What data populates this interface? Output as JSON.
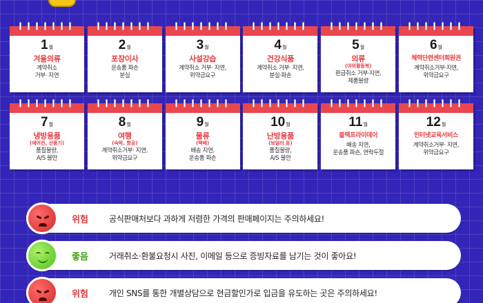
{
  "month_unit": "월",
  "months": [
    {
      "num": "1",
      "category": "겨울의류",
      "sub": "",
      "desc": "계약취소\n거부· 지연"
    },
    {
      "num": "2",
      "category": "포장이사",
      "sub": "",
      "desc": "운송품 파손\n분실"
    },
    {
      "num": "3",
      "category": "사설강습",
      "sub": "",
      "desc": "계약취소 거부· 지연,\n위약금요구"
    },
    {
      "num": "4",
      "category": "건강식품",
      "sub": "",
      "desc": "계약취소 거부· 지연,\n분실·파손"
    },
    {
      "num": "5",
      "category": "의류",
      "sub": "(야외활동복)",
      "desc": "환급취소 거부·지연,\n제품불량"
    },
    {
      "num": "6",
      "category": "체력단련센터회원권",
      "sub": "",
      "desc": "계약취소거부·지연,\n위약금요구"
    },
    {
      "num": "7",
      "category": "냉방용품",
      "sub": "(에어컨, 선풍기)",
      "desc": "품질불량,\nA/S 불만"
    },
    {
      "num": "8",
      "category": "여행",
      "sub": "(숙박, 항공)",
      "desc": "계약취소거부· 지연,\n위약금요구"
    },
    {
      "num": "9",
      "category": "물류",
      "sub": "(택배)",
      "desc": "배송 지연,\n운송품 파손"
    },
    {
      "num": "10",
      "category": "난방용품",
      "sub": "(보일러 등)",
      "desc": "품질불량,\nA/S 불만"
    },
    {
      "num": "11",
      "category": "블랙프라이데이",
      "sub": "",
      "desc": "배송 지연,\n운송품 파손, 연락두절"
    },
    {
      "num": "12",
      "category": "인터넷교육서비스",
      "sub": "",
      "desc": "계약취소거부· 지연,\n위약금요구"
    }
  ],
  "tips": [
    {
      "type": "danger",
      "label": "위험",
      "text": "공식판매처보다 과하게 저렴한 가격의 판매페이지는 주의하세요!"
    },
    {
      "type": "good",
      "label": "좋음",
      "text": "거래취소·환불요청시 사진, 이메일 등으로 증빙자료를 남기는 것이 좋아요!"
    },
    {
      "type": "danger",
      "label": "위험",
      "text": "개인 SNS를 통한 개별상담으로 현금할인가로 입금을 유도하는 곳은 주의하세요!"
    }
  ],
  "colors": {
    "background": "#3325b8",
    "accent_red": "#e53a3f",
    "good_green": "#3da40f"
  }
}
